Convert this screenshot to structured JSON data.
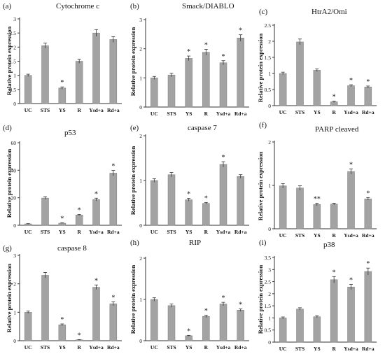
{
  "chart_data": [
    {
      "type": "bar",
      "panel_label": "(a)",
      "title": "Cytochrome  c",
      "ylabel": "Relative protein expression",
      "ylim": [
        0,
        3
      ],
      "yticks": [
        0,
        0.5,
        1,
        1.5,
        2,
        2.5,
        3
      ],
      "categories": [
        "UC",
        "STS",
        "YS",
        "R",
        "Ysd+a",
        "Rd+a"
      ],
      "values": [
        1.0,
        2.05,
        0.55,
        1.5,
        2.5,
        2.27
      ],
      "errors": [
        0.04,
        0.09,
        0.04,
        0.07,
        0.12,
        0.1
      ],
      "annotations": [
        "",
        "",
        "*",
        "",
        "",
        ""
      ]
    },
    {
      "type": "bar",
      "panel_label": "(b)",
      "title": "Smack/DIABLO",
      "ylabel": "Relative protein expression",
      "ylim": [
        0,
        3
      ],
      "yticks": [
        0,
        1,
        2,
        3
      ],
      "categories": [
        "UC",
        "STS",
        "YS",
        "R",
        "Ysd+a",
        "Rd+a"
      ],
      "values": [
        1.0,
        1.1,
        1.67,
        1.88,
        1.52,
        2.37
      ],
      "errors": [
        0.05,
        0.06,
        0.08,
        0.1,
        0.07,
        0.11
      ],
      "annotations": [
        "",
        "",
        "*",
        "*",
        "*",
        "*"
      ]
    },
    {
      "type": "bar",
      "panel_label": "(c)",
      "title": "HtrA2/Omi",
      "ylabel": "Relative protein expression",
      "ylim": [
        0,
        2.5
      ],
      "yticks": [
        0,
        0.5,
        1,
        1.5,
        2,
        2.5
      ],
      "categories": [
        "UC",
        "STS",
        "YS",
        "R",
        "Ysd+a",
        "Rd+a"
      ],
      "values": [
        1.0,
        1.98,
        1.1,
        0.12,
        0.62,
        0.58
      ],
      "errors": [
        0.04,
        0.09,
        0.04,
        0.02,
        0.03,
        0.03
      ],
      "annotations": [
        "",
        "",
        "",
        "*",
        "*",
        "*"
      ]
    },
    {
      "type": "bar",
      "panel_label": "(d)",
      "title": "p53",
      "ylabel": "Relative protein expression",
      "ylim": [
        0,
        60
      ],
      "yticks": [
        0,
        20,
        40,
        60
      ],
      "categories": [
        "UC",
        "STS",
        "YS",
        "R",
        "Ysd+a",
        "Rd+a"
      ],
      "values": [
        1.0,
        19.8,
        1.5,
        7.5,
        18.7,
        37.9
      ],
      "errors": [
        0.2,
        1.0,
        0.3,
        0.4,
        1.0,
        2.0
      ],
      "annotations": [
        "",
        "",
        "*",
        "*",
        "*",
        "*"
      ]
    },
    {
      "type": "bar",
      "panel_label": "(e)",
      "title": "caspase 7",
      "ylabel": "Relative protein expression",
      "ylim": [
        0,
        2
      ],
      "yticks": [
        0,
        1,
        2
      ],
      "categories": [
        "UC",
        "STS",
        "YS",
        "R",
        "Ysd+a",
        "Rd+a"
      ],
      "values": [
        1.0,
        1.13,
        0.57,
        0.49,
        1.36,
        1.09
      ],
      "errors": [
        0.04,
        0.05,
        0.03,
        0.02,
        0.06,
        0.04
      ],
      "annotations": [
        "",
        "",
        "*",
        "*",
        "*",
        ""
      ]
    },
    {
      "type": "bar",
      "panel_label": "(f)",
      "title": "PARP  cleaved",
      "ylabel": "Relative protein expression",
      "ylim": [
        0,
        2
      ],
      "yticks": [
        0,
        1,
        2
      ],
      "categories": [
        "UC",
        "STS",
        "YS",
        "R",
        "Ysd+a",
        "Rd+a"
      ],
      "values": [
        0.99,
        0.94,
        0.56,
        0.57,
        1.32,
        0.69
      ],
      "errors": [
        0.05,
        0.05,
        0.03,
        0.02,
        0.06,
        0.03
      ],
      "annotations": [
        "",
        "",
        "**",
        "",
        "*",
        "*"
      ]
    },
    {
      "type": "bar",
      "panel_label": "(g)",
      "title": "caspase 8",
      "ylabel": "Relative protein expression",
      "ylim": [
        0,
        3
      ],
      "yticks": [
        0,
        1,
        2,
        3
      ],
      "categories": [
        "UC",
        "STS",
        "YS",
        "R",
        "Ysd+a",
        "Rd+a"
      ],
      "values": [
        1.0,
        2.3,
        0.56,
        0.03,
        1.88,
        1.3
      ],
      "errors": [
        0.04,
        0.1,
        0.03,
        0.01,
        0.08,
        0.07
      ],
      "annotations": [
        "",
        "",
        "*",
        "*",
        "*",
        "*"
      ]
    },
    {
      "type": "bar",
      "panel_label": "(h)",
      "title": "RIP",
      "ylabel": "Relative protein expression",
      "ylim": [
        0,
        2
      ],
      "yticks": [
        0,
        1,
        2
      ],
      "categories": [
        "UC",
        "STS",
        "YS",
        "R",
        "Ysd+a",
        "Rd+a"
      ],
      "values": [
        1.0,
        0.85,
        0.12,
        0.59,
        0.89,
        0.74
      ],
      "errors": [
        0.04,
        0.04,
        0.01,
        0.03,
        0.04,
        0.03
      ],
      "annotations": [
        "",
        "",
        "*",
        "*",
        "*",
        "*"
      ]
    },
    {
      "type": "bar",
      "panel_label": "(i)",
      "title": "p38",
      "ylabel": "Relative protein expression",
      "ylim": [
        0,
        3.5
      ],
      "yticks": [
        0,
        0.5,
        1,
        1.5,
        2,
        2.5,
        3,
        3.5
      ],
      "categories": [
        "UC",
        "STS",
        "YS",
        "R",
        "Ysd+a",
        "Rd+a"
      ],
      "values": [
        1.0,
        1.37,
        1.05,
        2.58,
        2.28,
        2.92
      ],
      "errors": [
        0.04,
        0.05,
        0.04,
        0.13,
        0.11,
        0.14
      ],
      "annotations": [
        "",
        "",
        "",
        "*",
        "*",
        "*"
      ]
    }
  ]
}
